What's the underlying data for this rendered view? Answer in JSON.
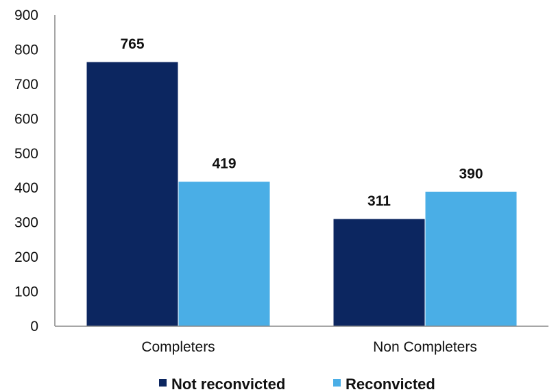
{
  "chart_data": {
    "type": "bar",
    "categories": [
      "Completers",
      "Non Completers"
    ],
    "series": [
      {
        "name": "Not reconvicted",
        "values": [
          765,
          311
        ],
        "color": "#0c2660"
      },
      {
        "name": "Reconvicted",
        "values": [
          419,
          390
        ],
        "color": "#4aaee6"
      }
    ],
    "ylim": [
      0,
      900
    ],
    "yticks": [
      0,
      100,
      200,
      300,
      400,
      500,
      600,
      700,
      800,
      900
    ],
    "title": "",
    "xlabel": "",
    "ylabel": "",
    "grid": false,
    "legend": "bottom-center",
    "axis_color": "#888888"
  }
}
